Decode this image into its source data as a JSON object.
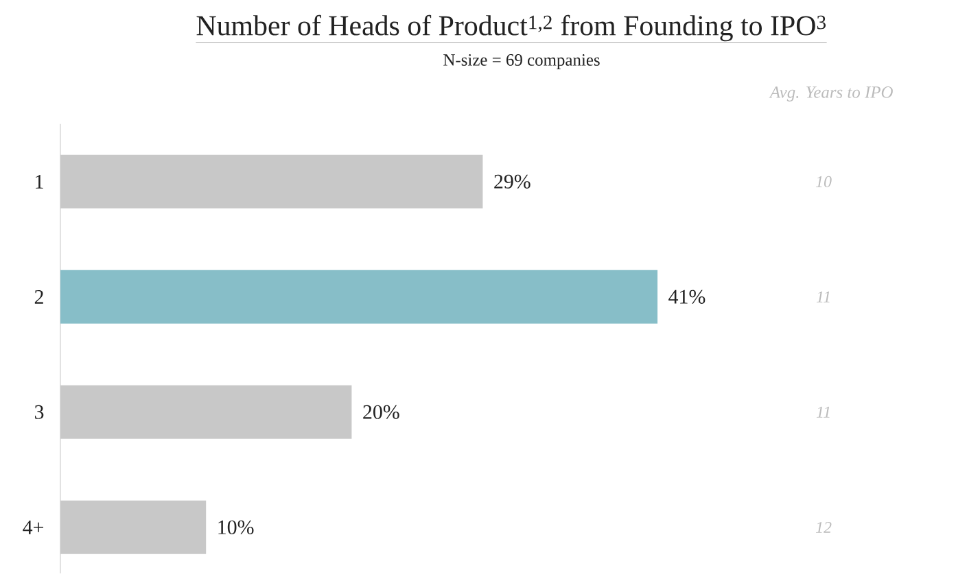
{
  "chart_data": {
    "type": "bar",
    "orientation": "horizontal",
    "title": "Number of Heads of Product$^{1,2}$ from Founding to IPO$^{3}$",
    "subtitle": "N-size = 69 companies",
    "categories": [
      "1",
      "2",
      "3",
      "4+"
    ],
    "values": [
      29,
      41,
      20,
      10
    ],
    "colors": [
      "#c8c8c8",
      "#87bec8",
      "#c8c8c8",
      "#c8c8c8"
    ],
    "value_labels": [
      "29%",
      "41%",
      "20%",
      "10%"
    ],
    "annotations": [
      "Avg. Years to IPO",
      "10",
      "11",
      "11",
      "12"
    ]
  }
}
